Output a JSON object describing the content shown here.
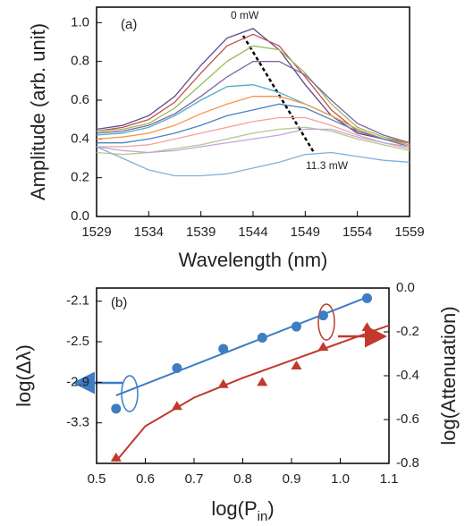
{
  "chart_data": [
    {
      "type": "line",
      "x_label": "Wavelength (nm)",
      "y_label": "Amplitude (arb. unit)",
      "annotations": [
        "(a)",
        "0 mW",
        "11.3 mW"
      ],
      "xlim": [
        1529,
        1559
      ],
      "xticks": [
        1529,
        1534,
        1539,
        1544,
        1549,
        1554,
        1559
      ],
      "ylim": [
        0,
        1.08
      ],
      "yticks": [
        {
          "value": 0,
          "label": "0.0"
        },
        0.2,
        0.4,
        0.6,
        0.8,
        {
          "value": 1,
          "label": "1.0"
        }
      ],
      "x": [
        1529,
        1531.5,
        1534,
        1536.5,
        1539,
        1541.5,
        1544,
        1546.5,
        1549,
        1551.5,
        1554,
        1556.5,
        1559
      ],
      "series": [
        {
          "color": "#5b4a8a",
          "values": [
            0.45,
            0.47,
            0.52,
            0.62,
            0.78,
            0.92,
            0.97,
            0.86,
            0.68,
            0.52,
            0.43,
            0.4,
            0.38
          ]
        },
        {
          "color": "#c0504d",
          "values": [
            0.44,
            0.46,
            0.5,
            0.59,
            0.74,
            0.88,
            0.94,
            0.88,
            0.72,
            0.55,
            0.44,
            0.4,
            0.38
          ]
        },
        {
          "color": "#9bbb59",
          "values": [
            0.44,
            0.45,
            0.48,
            0.56,
            0.68,
            0.8,
            0.88,
            0.86,
            0.74,
            0.58,
            0.46,
            0.41,
            0.38
          ]
        },
        {
          "color": "#8064a2",
          "values": [
            0.43,
            0.44,
            0.47,
            0.53,
            0.62,
            0.72,
            0.8,
            0.8,
            0.73,
            0.6,
            0.48,
            0.42,
            0.38
          ]
        },
        {
          "color": "#4bacc6",
          "values": [
            0.42,
            0.43,
            0.46,
            0.52,
            0.6,
            0.67,
            0.68,
            0.64,
            0.58,
            0.52,
            0.45,
            0.4,
            0.37
          ]
        },
        {
          "color": "#f79646",
          "values": [
            0.4,
            0.41,
            0.43,
            0.47,
            0.53,
            0.58,
            0.62,
            0.62,
            0.58,
            0.52,
            0.45,
            0.4,
            0.37
          ]
        },
        {
          "color": "#4f81bd",
          "values": [
            0.38,
            0.38,
            0.4,
            0.43,
            0.47,
            0.52,
            0.55,
            0.58,
            0.56,
            0.5,
            0.44,
            0.4,
            0.36
          ]
        },
        {
          "color": "#f2a0a0",
          "values": [
            0.36,
            0.36,
            0.37,
            0.4,
            0.43,
            0.46,
            0.49,
            0.51,
            0.51,
            0.47,
            0.42,
            0.38,
            0.35
          ]
        },
        {
          "color": "#b3c98a",
          "values": [
            0.33,
            0.32,
            0.33,
            0.35,
            0.37,
            0.4,
            0.43,
            0.45,
            0.46,
            0.44,
            0.4,
            0.37,
            0.34
          ]
        },
        {
          "color": "#c7a3d9",
          "values": [
            0.36,
            0.34,
            0.33,
            0.34,
            0.36,
            0.38,
            0.4,
            0.42,
            0.45,
            0.45,
            0.41,
            0.38,
            0.36
          ]
        },
        {
          "color": "#7fb2d9",
          "values": [
            0.36,
            0.3,
            0.24,
            0.21,
            0.21,
            0.22,
            0.25,
            0.28,
            0.32,
            0.33,
            0.31,
            0.29,
            0.28
          ]
        }
      ]
    },
    {
      "type": "scatter",
      "x_label_parts": [
        "log(P",
        "in",
        ")"
      ],
      "y_label": "log(Δλ)",
      "y2_label": "log(Attenuation)",
      "annotations": [
        "(b)"
      ],
      "xlim": [
        0.5,
        1.1
      ],
      "xticks": [
        0.5,
        0.6,
        0.7,
        0.8,
        0.9,
        {
          "value": 1,
          "label": "1.0"
        },
        1.1
      ],
      "ylim": [
        -3.7,
        -1.97
      ],
      "yticks": [
        -3.3,
        -2.9,
        -2.5,
        -2.1
      ],
      "y2lim": [
        -0.8,
        0
      ],
      "y2ticks": [
        -0.8,
        -0.6,
        -0.4,
        -0.2,
        {
          "value": 0,
          "label": "0.0"
        }
      ],
      "series": [
        {
          "color": "#3c7dc4",
          "mode": "line",
          "x": [
            0.54,
            1.05
          ],
          "values": [
            -3.03,
            -2.07
          ]
        },
        {
          "color": "#3c7dc4",
          "mode": "markers",
          "marker": "circle",
          "x": [
            0.54,
            0.665,
            0.76,
            0.84,
            0.91,
            0.965,
            1.055
          ],
          "values": [
            -3.16,
            -2.76,
            -2.57,
            -2.46,
            -2.35,
            -2.24,
            -2.07
          ]
        },
        {
          "color": "#c0392b",
          "mode": "line",
          "axis": "y2",
          "x": [
            0.54,
            0.6,
            0.7,
            0.8,
            0.9,
            1.0,
            1.1
          ],
          "values": [
            -0.79,
            -0.63,
            -0.5,
            -0.41,
            -0.33,
            -0.25,
            -0.17
          ]
        },
        {
          "color": "#c0392b",
          "mode": "markers",
          "marker": "triangle",
          "axis": "y2",
          "x": [
            0.54,
            0.665,
            0.76,
            0.84,
            0.91,
            0.965,
            1.055
          ],
          "values": [
            -0.775,
            -0.54,
            -0.44,
            -0.43,
            -0.355,
            -0.27,
            -0.18
          ]
        }
      ]
    }
  ]
}
